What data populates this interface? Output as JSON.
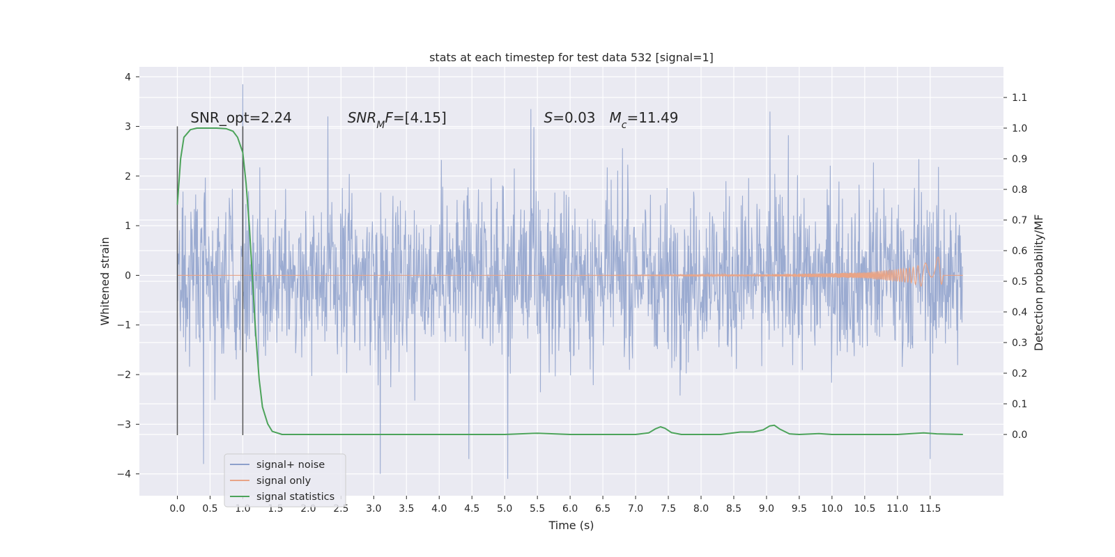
{
  "chart_data": {
    "type": "line",
    "title": "stats at each timestep for test data 532 [signal=1]",
    "xlabel": "Time (s)",
    "ylabel": "Whitened strain",
    "ylabel_right": "Detection probability/MF",
    "xlim": [
      -0.58,
      12.62
    ],
    "ylim": [
      -4.44,
      4.2
    ],
    "ylim_right": [
      -0.2,
      1.2
    ],
    "x_ticks": [
      0.0,
      0.5,
      1.0,
      1.5,
      2.0,
      2.5,
      3.0,
      3.5,
      4.0,
      4.5,
      5.0,
      5.5,
      6.0,
      6.5,
      7.0,
      7.5,
      8.0,
      8.5,
      9.0,
      9.5,
      10.0,
      10.5,
      11.0,
      11.5
    ],
    "x_tick_labels": [
      "0.0",
      "0.5",
      "1.0",
      "1.5",
      "2.0",
      "2.5",
      "3.0",
      "3.5",
      "4.0",
      "4.5",
      "5.0",
      "5.5",
      "6.0",
      "6.5",
      "7.0",
      "7.5",
      "8.0",
      "8.5",
      "9.0",
      "9.5",
      "10.0",
      "10.5",
      "11.0",
      "11.5"
    ],
    "y_ticks": [
      -4,
      -3,
      -2,
      -1,
      0,
      1,
      2,
      3,
      4
    ],
    "y_tick_labels": [
      "−4",
      "−3",
      "−2",
      "−1",
      "0",
      "1",
      "2",
      "3",
      "4"
    ],
    "y_ticks_right": [
      0.0,
      0.1,
      0.2,
      0.3,
      0.4,
      0.5,
      0.6,
      0.7,
      0.8,
      0.9,
      1.0,
      1.1
    ],
    "y_tick_labels_right": [
      "0.0",
      "0.1",
      "0.2",
      "0.3",
      "0.4",
      "0.5",
      "0.6",
      "0.7",
      "0.8",
      "0.9",
      "1.0",
      "1.1"
    ],
    "grid": true,
    "legend_position": "bottom-left",
    "series": [
      {
        "name": "signal+ noise",
        "axis": "left",
        "color": "#8da0cb",
        "description_style": "dense whitened noise trace, roughly uniform amplitude between -3 and +3",
        "x_range": [
          0.0,
          12.0
        ],
        "envelope_typical": [
          -2.0,
          2.0
        ],
        "peaks": [
          {
            "x": 1.0,
            "y": 3.85
          },
          {
            "x": 3.1,
            "y": -4.0
          },
          {
            "x": 4.45,
            "y": -3.7
          },
          {
            "x": 5.05,
            "y": -4.1
          },
          {
            "x": 5.4,
            "y": 3.35
          },
          {
            "x": 0.4,
            "y": -3.8
          },
          {
            "x": 2.3,
            "y": 3.2
          },
          {
            "x": 9.05,
            "y": 3.3
          },
          {
            "x": 11.5,
            "y": -3.7
          }
        ]
      },
      {
        "name": "signal only",
        "axis": "left",
        "color": "#e8a487",
        "description_style": "chirp signal near zero, amplitude growing towards merger",
        "points": [
          [
            0.0,
            0.0
          ],
          [
            6.0,
            0.0
          ],
          [
            9.0,
            0.02
          ],
          [
            10.5,
            0.06
          ],
          [
            11.2,
            0.15
          ],
          [
            11.55,
            0.3
          ],
          [
            11.65,
            0.4
          ],
          [
            11.7,
            0.0
          ],
          [
            12.0,
            0.0
          ]
        ]
      },
      {
        "name": "signal statistics",
        "axis": "right",
        "color": "#4ca35a",
        "points": [
          [
            0.0,
            0.75
          ],
          [
            0.05,
            0.9
          ],
          [
            0.1,
            0.97
          ],
          [
            0.2,
            0.995
          ],
          [
            0.3,
            1.0
          ],
          [
            0.6,
            1.0
          ],
          [
            0.75,
            0.998
          ],
          [
            0.85,
            0.99
          ],
          [
            0.92,
            0.97
          ],
          [
            1.0,
            0.92
          ],
          [
            1.05,
            0.82
          ],
          [
            1.1,
            0.68
          ],
          [
            1.15,
            0.5
          ],
          [
            1.2,
            0.32
          ],
          [
            1.25,
            0.18
          ],
          [
            1.3,
            0.09
          ],
          [
            1.38,
            0.035
          ],
          [
            1.45,
            0.01
          ],
          [
            1.6,
            0.0
          ],
          [
            2.0,
            0.0
          ],
          [
            5.0,
            0.0
          ],
          [
            5.5,
            0.004
          ],
          [
            6.0,
            0.0
          ],
          [
            7.0,
            0.0
          ],
          [
            7.2,
            0.005
          ],
          [
            7.3,
            0.018
          ],
          [
            7.38,
            0.025
          ],
          [
            7.45,
            0.02
          ],
          [
            7.55,
            0.006
          ],
          [
            7.7,
            0.0
          ],
          [
            8.3,
            0.0
          ],
          [
            8.6,
            0.008
          ],
          [
            8.8,
            0.008
          ],
          [
            8.95,
            0.015
          ],
          [
            9.05,
            0.028
          ],
          [
            9.12,
            0.03
          ],
          [
            9.2,
            0.018
          ],
          [
            9.35,
            0.002
          ],
          [
            9.5,
            0.0
          ],
          [
            9.8,
            0.003
          ],
          [
            10.0,
            0.0
          ],
          [
            11.0,
            0.0
          ],
          [
            11.4,
            0.005
          ],
          [
            11.6,
            0.002
          ],
          [
            12.0,
            0.0
          ]
        ]
      }
    ],
    "vertical_lines": [
      {
        "x": 0.0,
        "color": "#555555"
      },
      {
        "x": 1.0,
        "color": "#555555"
      }
    ],
    "annotations": [
      {
        "text": "SNR_opt=2.24",
        "x": 0.2,
        "y": 3.08
      },
      {
        "text_parts": [
          {
            "t": "SNR",
            "italic": true
          },
          {
            "t": "M",
            "italic": true,
            "sub": true
          },
          {
            "t": "F",
            "italic": true
          },
          {
            "t": "=[4.15]",
            "italic": false
          }
        ],
        "x": 2.6,
        "y": 3.08
      },
      {
        "text_parts": [
          {
            "t": "S",
            "italic": true
          },
          {
            "t": "=0.03",
            "italic": false
          }
        ],
        "x": 5.6,
        "y": 3.08
      },
      {
        "text_parts": [
          {
            "t": "M",
            "italic": true
          },
          {
            "t": "c",
            "italic": true,
            "sub": true
          },
          {
            "t": "=11.49",
            "italic": false
          }
        ],
        "x": 6.6,
        "y": 3.08
      }
    ]
  }
}
